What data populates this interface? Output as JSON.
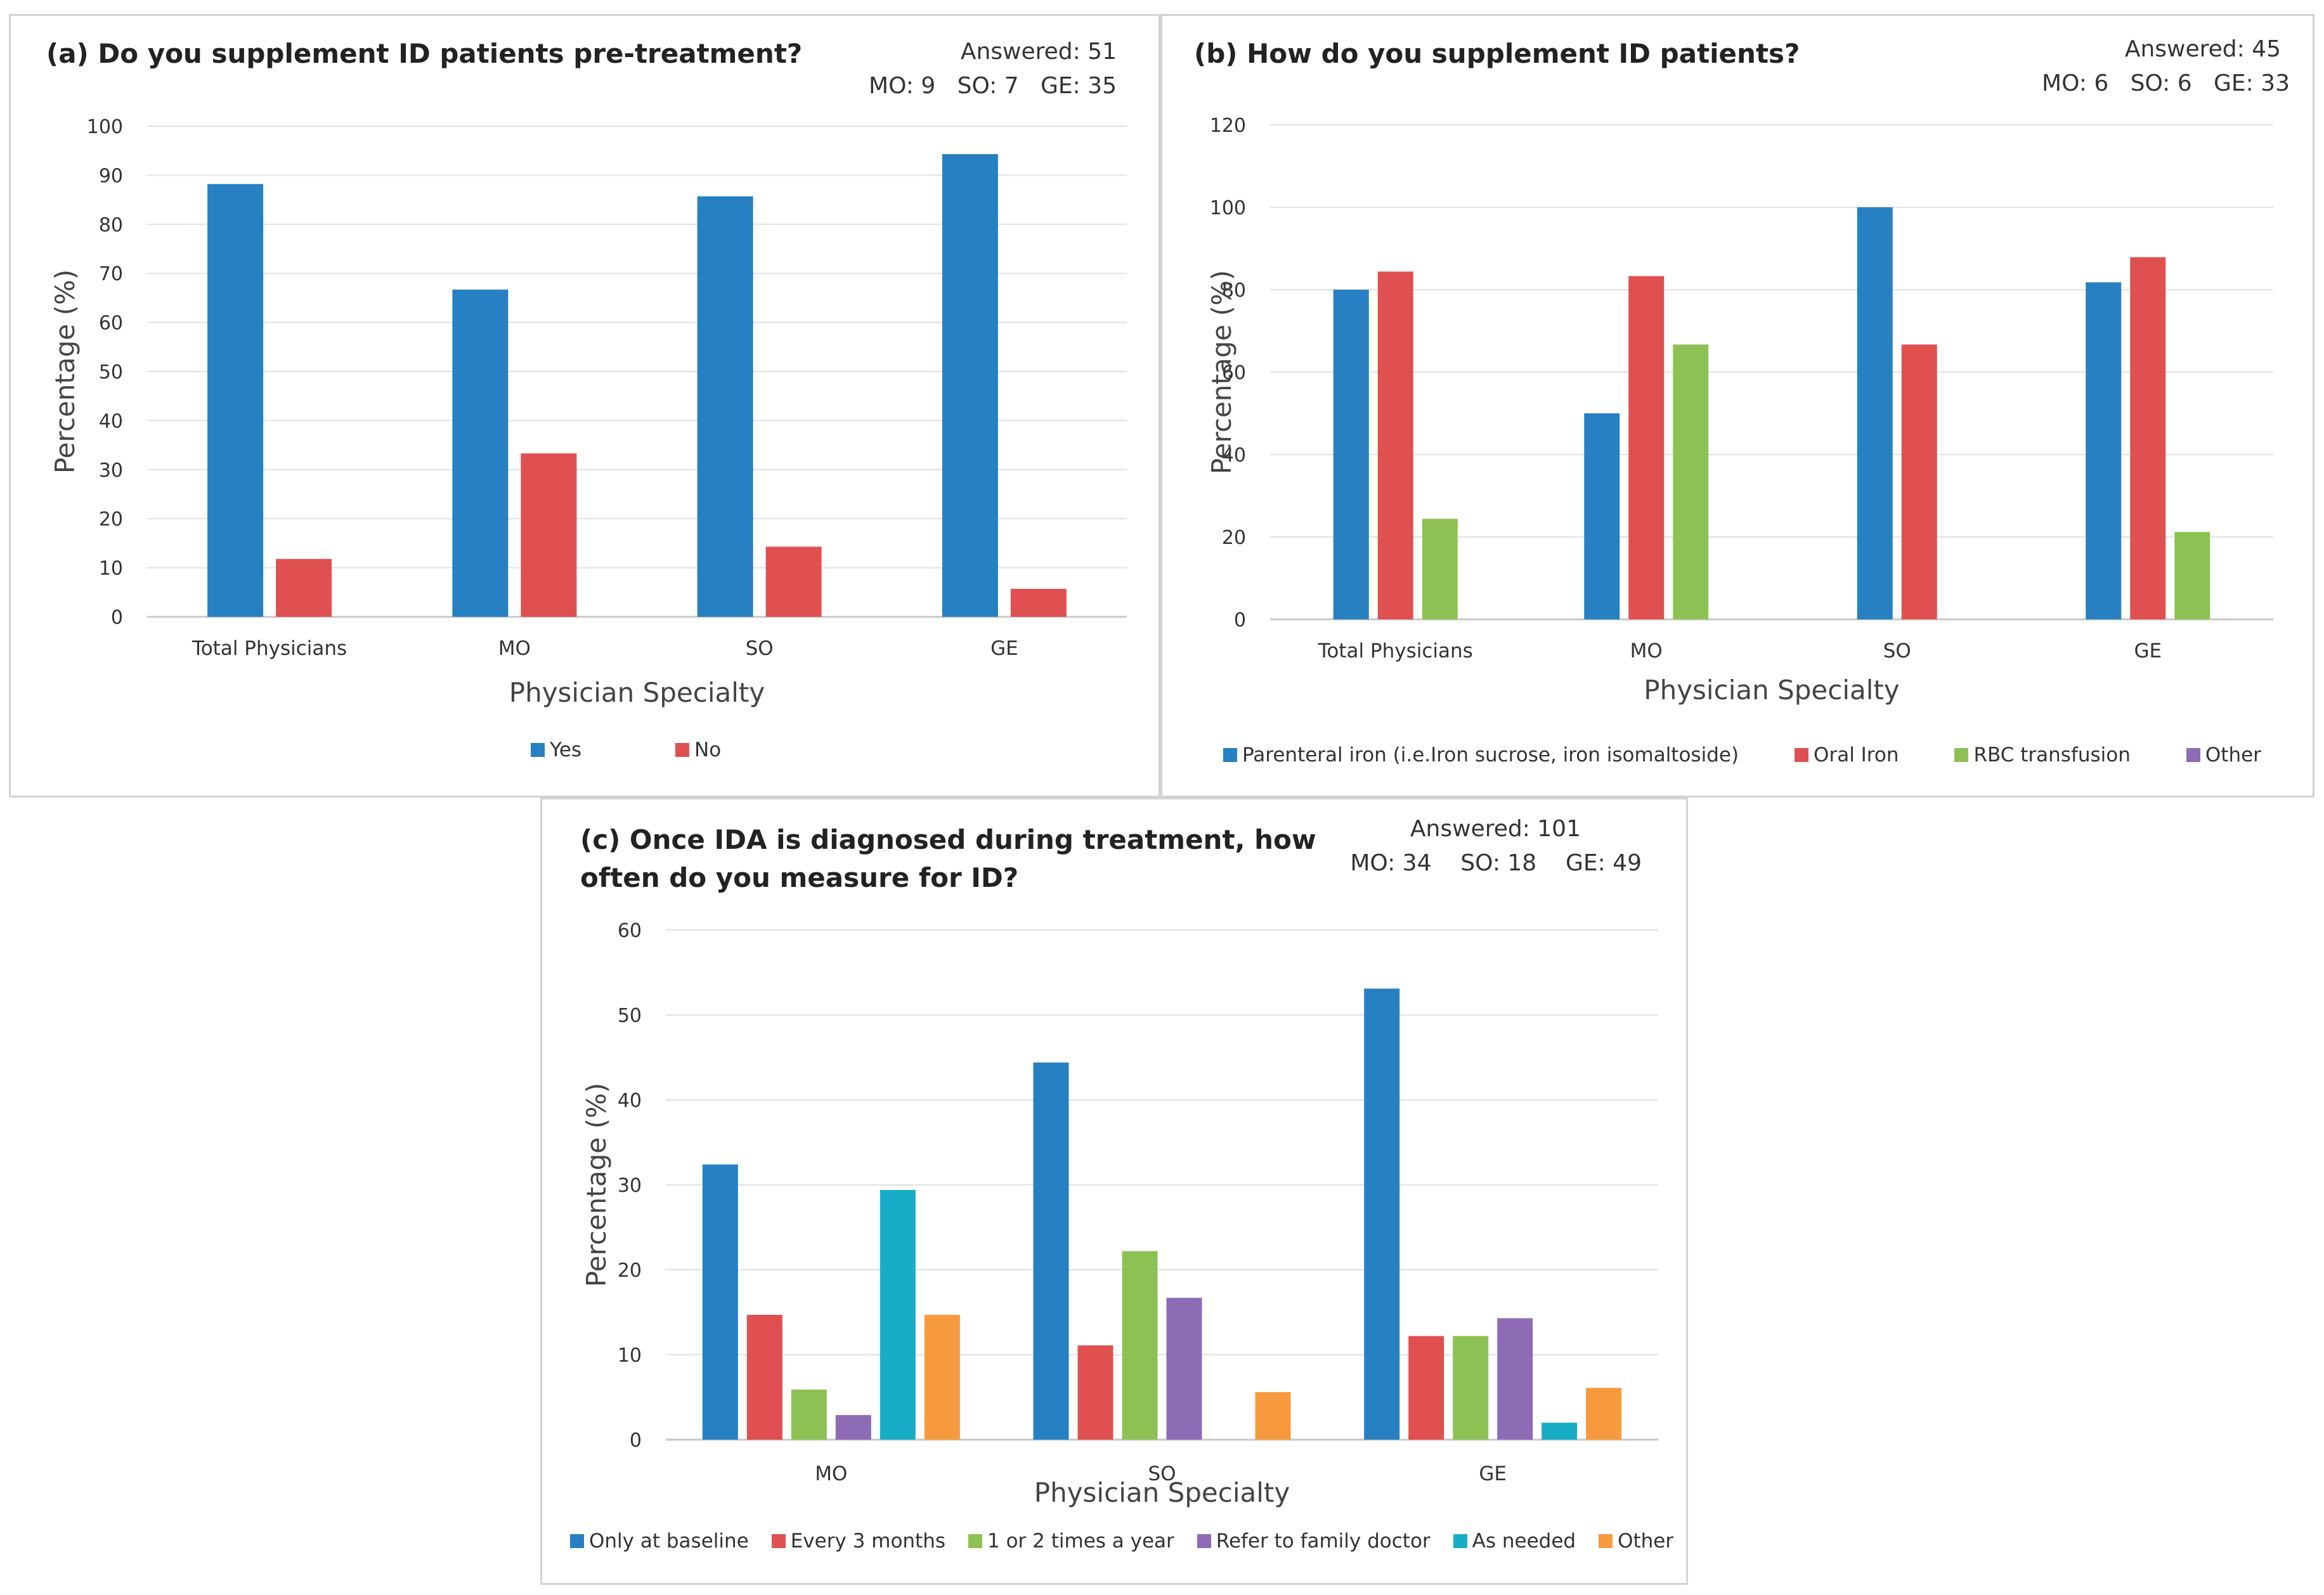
{
  "panels": {
    "a": {
      "title": "(a) Do you supplement ID patients pre-treatment?",
      "answered": "Answered: 51",
      "counts": "MO: 9   SO: 7   GE: 35"
    },
    "b": {
      "title": "(b) How do you supplement ID patients?",
      "answered": "Answered: 45",
      "counts": "MO: 6   SO: 6   GE: 33"
    },
    "c": {
      "title_line1": "(c) Once IDA is diagnosed during treatment, how",
      "title_line2": "often do you measure for ID?",
      "answered": "Answered: 101",
      "counts": "MO: 34    SO: 18    GE: 49"
    }
  },
  "chart_data": [
    {
      "type": "bar",
      "title": "(a) Do you supplement ID patients pre-treatment?",
      "xlabel": "Physician Specialty",
      "ylabel": "Percentage (%)",
      "ylim": [
        0,
        100
      ],
      "yticks": [
        0,
        10,
        20,
        30,
        40,
        50,
        60,
        70,
        80,
        90,
        100
      ],
      "categories": [
        "Total Physicians",
        "MO",
        "SO",
        "GE"
      ],
      "series": [
        {
          "name": "Yes",
          "color": "#2680c2",
          "values": [
            88.2,
            66.7,
            85.7,
            94.3
          ]
        },
        {
          "name": "No",
          "color": "#e05050",
          "values": [
            11.8,
            33.3,
            14.3,
            5.7
          ]
        }
      ],
      "legend": "bottom"
    },
    {
      "type": "bar",
      "title": "(b) How do you supplement ID patients?",
      "xlabel": "Physician Specialty",
      "ylabel": "Percentage (%)",
      "ylim": [
        0,
        120
      ],
      "yticks": [
        0,
        20,
        40,
        60,
        80,
        100,
        120
      ],
      "categories": [
        "Total Physicians",
        "MO",
        "SO",
        "GE"
      ],
      "series": [
        {
          "name": "Parenteral iron (i.e.Iron sucrose, iron isomaltoside)",
          "color": "#2680c2",
          "values": [
            80,
            50,
            100,
            81.8
          ]
        },
        {
          "name": "Oral Iron",
          "color": "#e05050",
          "values": [
            84.4,
            83.3,
            66.7,
            87.9
          ]
        },
        {
          "name": "RBC transfusion",
          "color": "#8dc153",
          "values": [
            24.4,
            66.7,
            0,
            21.2
          ]
        },
        {
          "name": "Other",
          "color": "#8e6bb5",
          "values": [
            0,
            0,
            0,
            0
          ]
        }
      ],
      "legend": "bottom"
    },
    {
      "type": "bar",
      "title": "(c) Once IDA is diagnosed during treatment, how often do you measure for ID?",
      "xlabel": "Physician Specialty",
      "ylabel": "Percentage (%)",
      "ylim": [
        0,
        60
      ],
      "yticks": [
        0,
        10,
        20,
        30,
        40,
        50,
        60
      ],
      "categories": [
        "MO",
        "SO",
        "GE"
      ],
      "series": [
        {
          "name": "Only at baseline",
          "color": "#2680c2",
          "values": [
            32.4,
            44.4,
            53.1
          ]
        },
        {
          "name": "Every 3 months",
          "color": "#e05050",
          "values": [
            14.7,
            11.1,
            12.2
          ]
        },
        {
          "name": "1 or 2 times a year",
          "color": "#8dc153",
          "values": [
            5.9,
            22.2,
            12.2
          ]
        },
        {
          "name": "Refer to family doctor",
          "color": "#8e6bb5",
          "values": [
            2.9,
            16.7,
            14.3
          ]
        },
        {
          "name": "As needed",
          "color": "#17adc6",
          "values": [
            29.4,
            0,
            2.0
          ]
        },
        {
          "name": "Other",
          "color": "#f79a3e",
          "values": [
            14.7,
            5.6,
            6.1
          ]
        }
      ],
      "legend": "bottom"
    }
  ]
}
